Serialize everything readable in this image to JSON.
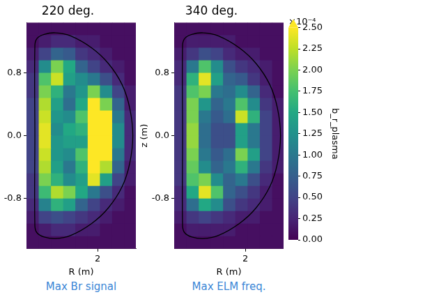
{
  "chart_data": [
    {
      "type": "heatmap",
      "title": "220 deg.",
      "caption": "Max Br signal",
      "xlabel": "R (m)",
      "xlim": [
        1.07,
        2.5
      ],
      "ylim": [
        -1.44,
        1.44
      ],
      "xticks": [
        2
      ],
      "yticks": [
        -0.8,
        {
          "value": 0,
          "label": "0.0"
        },
        0.8
      ],
      "r_edges": [
        1.07,
        1.23,
        1.39,
        1.55,
        1.71,
        1.87,
        2.03,
        2.19,
        2.35,
        2.51
      ],
      "z_edges": [
        1.44,
        1.28,
        1.12,
        0.96,
        0.8,
        0.64,
        0.48,
        0.32,
        0.16,
        0,
        -0.16,
        -0.32,
        -0.48,
        -0.64,
        -0.8,
        -0.96,
        -1.12,
        -1.28,
        -1.44
      ],
      "cells": [
        [
          0.1,
          0.1,
          0.1,
          0.1,
          0.1,
          0.1,
          0.1,
          0.1,
          0.1
        ],
        [
          0.1,
          0.2,
          0.3,
          0.3,
          0.2,
          0.2,
          0.1,
          0.1,
          0.1
        ],
        [
          0.2,
          0.5,
          0.8,
          0.7,
          0.4,
          0.3,
          0.2,
          0.1,
          0.1
        ],
        [
          0.3,
          1.2,
          2.0,
          1.5,
          0.8,
          0.5,
          0.3,
          0.2,
          0.1
        ],
        [
          0.4,
          1.8,
          2.3,
          1.4,
          1.2,
          1.0,
          0.6,
          0.3,
          0.1
        ],
        [
          0.4,
          2.0,
          1.6,
          1.0,
          1.3,
          2.0,
          1.2,
          0.5,
          0.2
        ],
        [
          0.5,
          2.2,
          1.4,
          0.9,
          1.5,
          2.6,
          2.0,
          0.8,
          0.2
        ],
        [
          0.5,
          2.3,
          1.3,
          1.2,
          1.8,
          2.8,
          2.6,
          1.0,
          0.3
        ],
        [
          0.5,
          2.4,
          1.2,
          1.5,
          1.6,
          2.8,
          2.8,
          1.2,
          0.3
        ],
        [
          0.5,
          2.4,
          1.3,
          1.4,
          1.4,
          2.8,
          2.8,
          1.2,
          0.3
        ],
        [
          0.5,
          2.3,
          1.3,
          1.2,
          1.8,
          2.8,
          2.6,
          1.0,
          0.3
        ],
        [
          0.5,
          2.2,
          1.4,
          1.0,
          1.6,
          2.6,
          2.2,
          0.8,
          0.2
        ],
        [
          0.4,
          2.0,
          1.6,
          1.2,
          1.4,
          2.4,
          1.4,
          0.5,
          0.2
        ],
        [
          0.4,
          1.7,
          2.2,
          2.0,
          1.5,
          1.0,
          0.6,
          0.3,
          0.1
        ],
        [
          0.3,
          1.1,
          1.6,
          1.4,
          0.8,
          0.5,
          0.3,
          0.2,
          0.1
        ],
        [
          0.2,
          0.5,
          0.6,
          0.5,
          0.4,
          0.3,
          0.2,
          0.1,
          0.1
        ],
        [
          0.1,
          0.2,
          0.3,
          0.3,
          0.2,
          0.2,
          0.1,
          0.1,
          0.1
        ],
        [
          0.1,
          0.1,
          0.1,
          0.1,
          0.1,
          0.1,
          0.1,
          0.1,
          0.1
        ]
      ],
      "boundary": {
        "R": [
          1.18,
          1.18,
          1.21,
          1.3,
          1.45,
          1.65,
          1.92,
          2.14,
          2.32,
          2.42,
          2.46,
          2.42,
          2.32,
          2.14,
          1.92,
          1.65,
          1.45,
          1.3,
          1.21,
          1.18,
          1.18
        ],
        "z": [
          0,
          1.15,
          1.24,
          1.29,
          1.31,
          1.27,
          1.12,
          0.92,
          0.65,
          0.35,
          0,
          -0.35,
          -0.65,
          -0.92,
          -1.12,
          -1.27,
          -1.31,
          -1.29,
          -1.24,
          -1.15,
          0
        ]
      }
    },
    {
      "type": "heatmap",
      "title": "340 deg.",
      "caption": "Max ELM freq.",
      "xlabel": "R (m)",
      "ylabel": "z (m)",
      "xlim": [
        1.07,
        2.5
      ],
      "ylim": [
        -1.44,
        1.44
      ],
      "xticks": [
        2
      ],
      "yticks": [
        -0.8,
        {
          "value": 0,
          "label": "0.0"
        },
        0.8
      ],
      "r_edges": [
        1.07,
        1.23,
        1.39,
        1.55,
        1.71,
        1.87,
        2.03,
        2.19,
        2.35,
        2.51
      ],
      "z_edges": [
        1.44,
        1.28,
        1.12,
        0.96,
        0.8,
        0.64,
        0.48,
        0.32,
        0.16,
        0,
        -0.16,
        -0.32,
        -0.48,
        -0.64,
        -0.8,
        -0.96,
        -1.12,
        -1.28,
        -1.44
      ],
      "cells": [
        [
          0.1,
          0.1,
          0.1,
          0.1,
          0.1,
          0.1,
          0.1,
          0.1,
          0.1
        ],
        [
          0.1,
          0.2,
          0.2,
          0.2,
          0.2,
          0.1,
          0.1,
          0.1,
          0.1
        ],
        [
          0.2,
          0.4,
          0.6,
          0.5,
          0.3,
          0.2,
          0.2,
          0.1,
          0.1
        ],
        [
          0.3,
          1.0,
          1.8,
          1.2,
          0.6,
          0.4,
          0.3,
          0.2,
          0.1
        ],
        [
          0.3,
          1.6,
          2.4,
          1.4,
          0.8,
          0.7,
          0.4,
          0.2,
          0.1
        ],
        [
          0.4,
          1.8,
          2.0,
          1.0,
          0.9,
          1.2,
          0.8,
          0.3,
          0.1
        ],
        [
          0.4,
          2.0,
          1.3,
          0.8,
          1.0,
          1.8,
          1.2,
          0.4,
          0.2
        ],
        [
          0.4,
          2.0,
          1.0,
          0.7,
          0.9,
          2.3,
          1.6,
          0.5,
          0.2
        ],
        [
          0.4,
          2.1,
          0.9,
          0.6,
          0.6,
          1.4,
          1.0,
          0.5,
          0.2
        ],
        [
          0.4,
          2.1,
          0.9,
          0.6,
          0.6,
          1.4,
          1.0,
          0.5,
          0.2
        ],
        [
          0.4,
          2.0,
          1.0,
          0.7,
          0.9,
          2.0,
          1.4,
          0.5,
          0.2
        ],
        [
          0.4,
          1.9,
          1.2,
          0.8,
          1.0,
          1.6,
          1.0,
          0.4,
          0.2
        ],
        [
          0.4,
          1.8,
          2.0,
          1.2,
          0.8,
          1.0,
          0.6,
          0.3,
          0.1
        ],
        [
          0.3,
          1.5,
          2.4,
          1.8,
          0.8,
          0.6,
          0.4,
          0.2,
          0.1
        ],
        [
          0.3,
          0.9,
          1.5,
          1.2,
          0.6,
          0.4,
          0.3,
          0.2,
          0.1
        ],
        [
          0.2,
          0.4,
          0.5,
          0.4,
          0.3,
          0.2,
          0.2,
          0.1,
          0.1
        ],
        [
          0.1,
          0.2,
          0.2,
          0.2,
          0.2,
          0.1,
          0.1,
          0.1,
          0.1
        ],
        [
          0.1,
          0.1,
          0.1,
          0.1,
          0.1,
          0.1,
          0.1,
          0.1,
          0.1
        ]
      ],
      "boundary": {
        "R": [
          1.18,
          1.18,
          1.21,
          1.3,
          1.45,
          1.65,
          1.92,
          2.14,
          2.32,
          2.42,
          2.46,
          2.42,
          2.32,
          2.14,
          1.92,
          1.65,
          1.45,
          1.3,
          1.21,
          1.18,
          1.18
        ],
        "z": [
          0,
          1.15,
          1.24,
          1.29,
          1.31,
          1.27,
          1.12,
          0.92,
          0.65,
          0.35,
          0,
          -0.35,
          -0.65,
          -0.92,
          -1.12,
          -1.27,
          -1.31,
          -1.29,
          -1.24,
          -1.15,
          0
        ]
      },
      "colorbar": {
        "range": [
          0,
          2.5
        ],
        "label": "b_r_plasma",
        "scale_label": "×10⁻⁴",
        "ticks": [
          {
            "value": 0,
            "label": "0.00"
          },
          {
            "value": 0.25,
            "label": "0.25"
          },
          {
            "value": 0.5,
            "label": "0.50"
          },
          {
            "value": 0.75,
            "label": "0.75"
          },
          {
            "value": 1,
            "label": "1.00"
          },
          {
            "value": 1.25,
            "label": "1.25"
          },
          {
            "value": 1.5,
            "label": "1.50"
          },
          {
            "value": 1.75,
            "label": "1.75"
          },
          {
            "value": 2,
            "label": "2.00"
          },
          {
            "value": 2.25,
            "label": "2.25"
          },
          {
            "value": 2.5,
            "label": "2.50"
          }
        ]
      }
    }
  ]
}
